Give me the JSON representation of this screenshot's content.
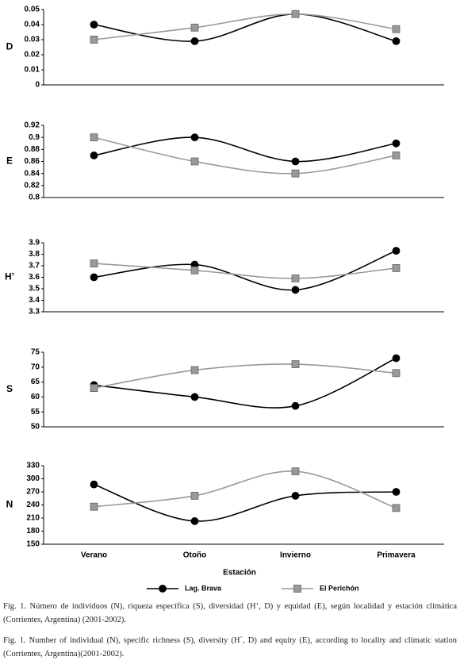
{
  "chart_data": [
    {
      "type": "line",
      "ylabel": "D",
      "ylim": [
        0,
        0.05
      ],
      "yticks": [
        0,
        0.01,
        0.02,
        0.03,
        0.04,
        0.05
      ],
      "series": [
        {
          "color": "#000000",
          "marker": "circle",
          "values": [
            0.04,
            0.029,
            0.047,
            0.029
          ]
        },
        {
          "color": "#999999",
          "marker": "square",
          "values": [
            0.03,
            0.038,
            0.047,
            0.037
          ]
        }
      ]
    },
    {
      "type": "line",
      "ylabel": "E",
      "ylim": [
        0.8,
        0.92
      ],
      "yticks": [
        0.8,
        0.82,
        0.84,
        0.86,
        0.88,
        0.9,
        0.92
      ],
      "series": [
        {
          "color": "#000000",
          "marker": "circle",
          "values": [
            0.87,
            0.9,
            0.86,
            0.89
          ]
        },
        {
          "color": "#999999",
          "marker": "square",
          "values": [
            0.9,
            0.86,
            0.84,
            0.87
          ]
        }
      ]
    },
    {
      "type": "line",
      "ylabel": "H’",
      "ylim": [
        3.3,
        3.9
      ],
      "yticks": [
        3.3,
        3.4,
        3.5,
        3.6,
        3.7,
        3.8,
        3.9
      ],
      "series": [
        {
          "color": "#000000",
          "marker": "circle",
          "values": [
            3.6,
            3.71,
            3.49,
            3.83
          ]
        },
        {
          "color": "#999999",
          "marker": "square",
          "values": [
            3.72,
            3.66,
            3.59,
            3.68
          ]
        }
      ]
    },
    {
      "type": "line",
      "ylabel": "S",
      "ylim": [
        50,
        75
      ],
      "yticks": [
        50,
        55,
        60,
        65,
        70,
        75
      ],
      "series": [
        {
          "color": "#000000",
          "marker": "circle",
          "values": [
            64,
            60,
            57,
            73
          ]
        },
        {
          "color": "#999999",
          "marker": "square",
          "values": [
            63,
            69,
            71,
            68
          ]
        }
      ]
    },
    {
      "type": "line",
      "ylabel": "N",
      "ylim": [
        150,
        330
      ],
      "yticks": [
        150,
        180,
        210,
        240,
        270,
        300,
        330
      ],
      "xlabel": "Estación",
      "categories": [
        "Verano",
        "Otoño",
        "Invierno",
        "Primavera"
      ],
      "series": [
        {
          "name": "Lag. Brava",
          "color": "#000000",
          "marker": "circle",
          "values": [
            287,
            203,
            261,
            270
          ]
        },
        {
          "name": "El Perichón",
          "color": "#999999",
          "marker": "square",
          "values": [
            236,
            261,
            317,
            233
          ]
        }
      ]
    }
  ],
  "caption_es": "Fig. 1. Número de individuos (N), riqueza específica (S), diversidad (H’, D) y equidad (E), según localidad y estación climática (Corrientes, Argentina) (2001-2002).",
  "caption_en": "Fig. 1. Number of individual (N), specific richness (S), diversity (H´, D) and equity (E), according to locality and climatic station (Corrientes, Argentina)(2001-2002)."
}
